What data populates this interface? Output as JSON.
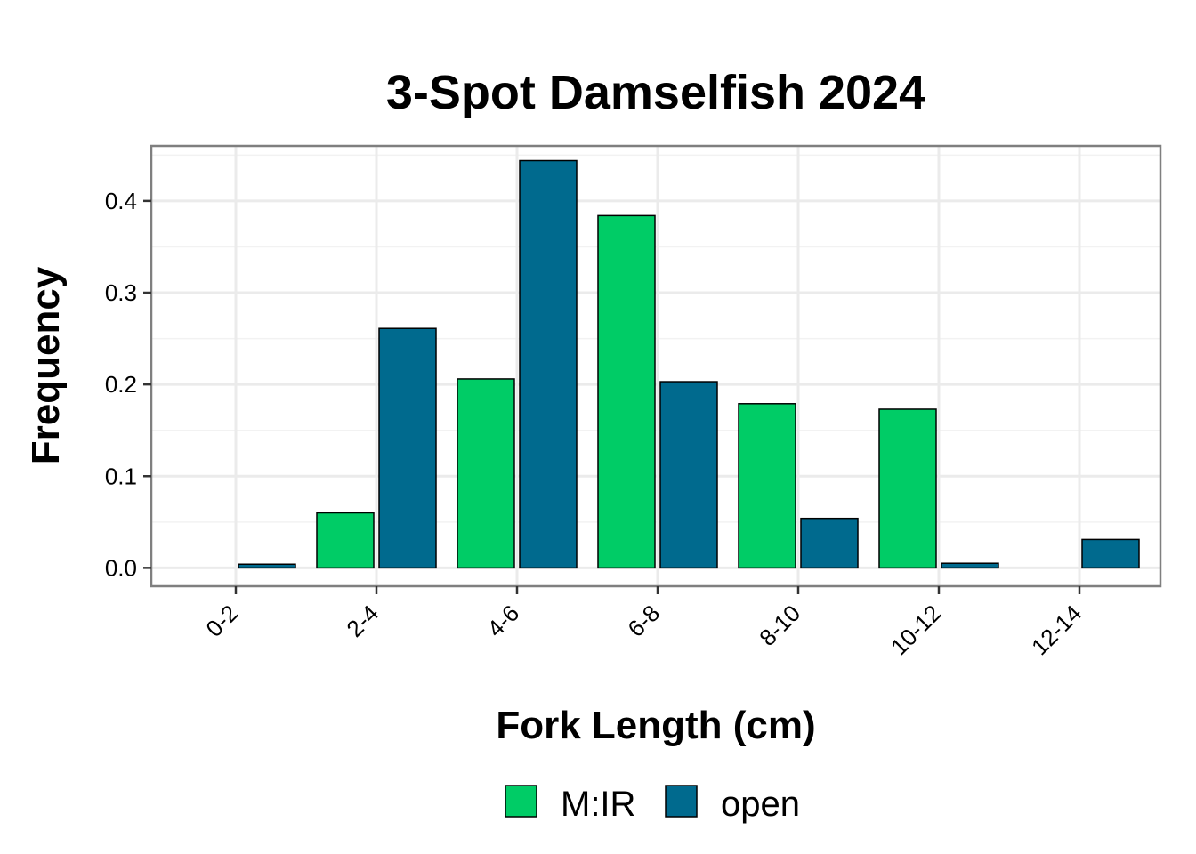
{
  "chart_data": {
    "type": "bar",
    "title": "3-Spot Damselfish 2024",
    "xlabel": "Fork Length (cm)",
    "ylabel": "Frequency",
    "categories": [
      "0-2",
      "2-4",
      "4-6",
      "6-8",
      "8-10",
      "10-12",
      "12-14"
    ],
    "series": [
      {
        "name": "M:IR",
        "color": "#00CC66",
        "values": [
          0.0,
          0.06,
          0.206,
          0.384,
          0.179,
          0.173,
          0.0
        ]
      },
      {
        "name": "open",
        "color": "#006A8E",
        "values": [
          0.004,
          0.261,
          0.444,
          0.203,
          0.054,
          0.005,
          0.031
        ]
      }
    ],
    "ylim": [
      -0.02,
      0.46
    ],
    "yticks": [
      0.0,
      0.1,
      0.2,
      0.3,
      0.4
    ],
    "ytick_labels": [
      "0.0",
      "0.1",
      "0.2",
      "0.3",
      "0.4"
    ],
    "grid": true,
    "legend_position": "bottom"
  }
}
